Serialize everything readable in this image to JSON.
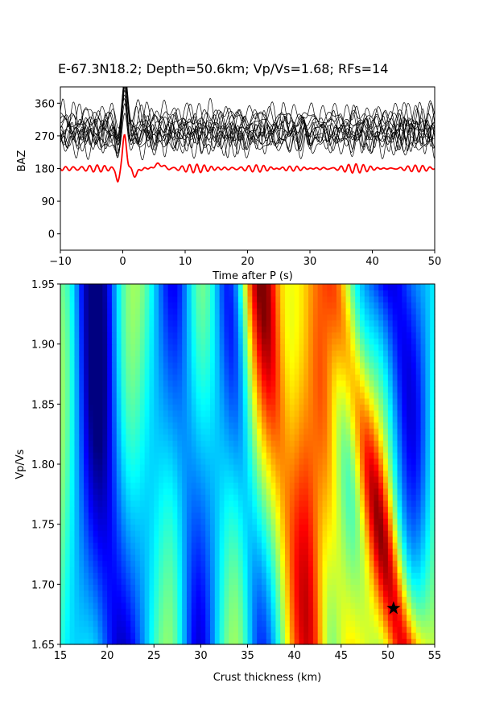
{
  "title": "E-67.3N18.2; Depth=50.6km; Vp/Vs=1.68; RFs=14",
  "chart_data": [
    {
      "type": "line",
      "panel": "receiver-functions",
      "xlabel": "Time after P (s)",
      "ylabel": "BAZ",
      "xlim": [
        -10,
        50
      ],
      "ylim": [
        -45,
        405
      ],
      "xticks": [
        -10,
        0,
        10,
        20,
        30,
        40,
        50
      ],
      "yticks": [
        0,
        90,
        180,
        270,
        360
      ],
      "grid": false,
      "trace_color": "#000000",
      "stack_color": "#ff0000",
      "traces": [
        {
          "baz": 245,
          "peak": 80
        },
        {
          "baz": 255,
          "peak": 95
        },
        {
          "baz": 262,
          "peak": 110
        },
        {
          "baz": 268,
          "peak": 100
        },
        {
          "baz": 272,
          "peak": 120
        },
        {
          "baz": 278,
          "peak": 90
        },
        {
          "baz": 282,
          "peak": 85
        },
        {
          "baz": 288,
          "peak": 105
        },
        {
          "baz": 292,
          "peak": 95
        },
        {
          "baz": 298,
          "peak": 110
        },
        {
          "baz": 305,
          "peak": 100
        },
        {
          "baz": 312,
          "peak": 90
        },
        {
          "baz": 320,
          "peak": 85
        },
        {
          "baz": 330,
          "peak": 80
        }
      ],
      "stack": {
        "baz": 180,
        "peak": 90,
        "trough": -38
      }
    },
    {
      "type": "heatmap",
      "panel": "h-k-stacking",
      "xlabel": "Crust thickness (km)",
      "ylabel": "Vp/Vs",
      "xlim": [
        15,
        55
      ],
      "ylim": [
        1.65,
        1.95
      ],
      "xticks": [
        15,
        20,
        25,
        30,
        35,
        40,
        45,
        50,
        55
      ],
      "yticks": [
        1.65,
        1.7,
        1.75,
        1.8,
        1.85,
        1.9,
        1.95
      ],
      "colormap": "jet",
      "best": {
        "H": 50.6,
        "k": 1.68,
        "marker": "star"
      }
    }
  ]
}
